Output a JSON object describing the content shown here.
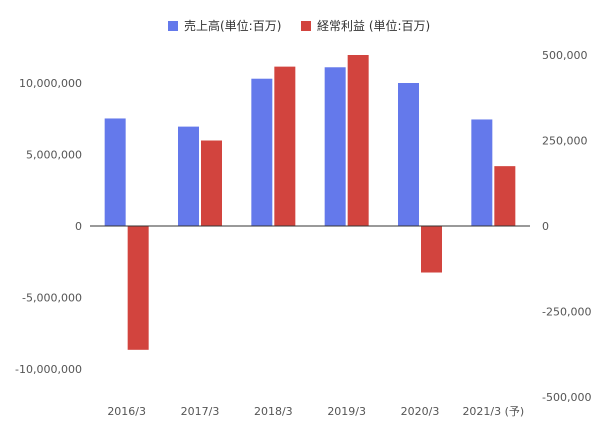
{
  "chart_data": {
    "type": "bar",
    "categories": [
      "2016/3",
      "2017/3",
      "2018/3",
      "2019/3",
      "2020/3",
      "2021/3 (予)"
    ],
    "series": [
      {
        "name": "売上高(単位:百万)",
        "axis": "left",
        "color": "#6479EB",
        "values": [
          7520000,
          6950000,
          10300000,
          11100000,
          10000000,
          7450000
        ]
      },
      {
        "name": "経常利益 (単位:百万)",
        "axis": "right",
        "color": "#D2443E",
        "values": [
          -362000,
          250000,
          466000,
          500000,
          -136000,
          175000
        ]
      }
    ],
    "ylim_left": [
      -12500000,
      12500000
    ],
    "yticks_left": [
      -10000000,
      -5000000,
      0,
      5000000,
      10000000
    ],
    "yticklabels_left": [
      "-10,000,000",
      "-5,000,000",
      "0",
      "5,000,000",
      "10,000,000"
    ],
    "ylim_right": [
      -500000,
      500000
    ],
    "yticks_right": [
      -500000,
      -250000,
      0,
      250000,
      500000
    ],
    "yticklabels_right": [
      "-500,000",
      "-250,000",
      "0",
      "250,000",
      "500,000"
    ],
    "grid": false,
    "legend_position": "top-center",
    "title": "",
    "xlabel": "",
    "ylabel": ""
  }
}
